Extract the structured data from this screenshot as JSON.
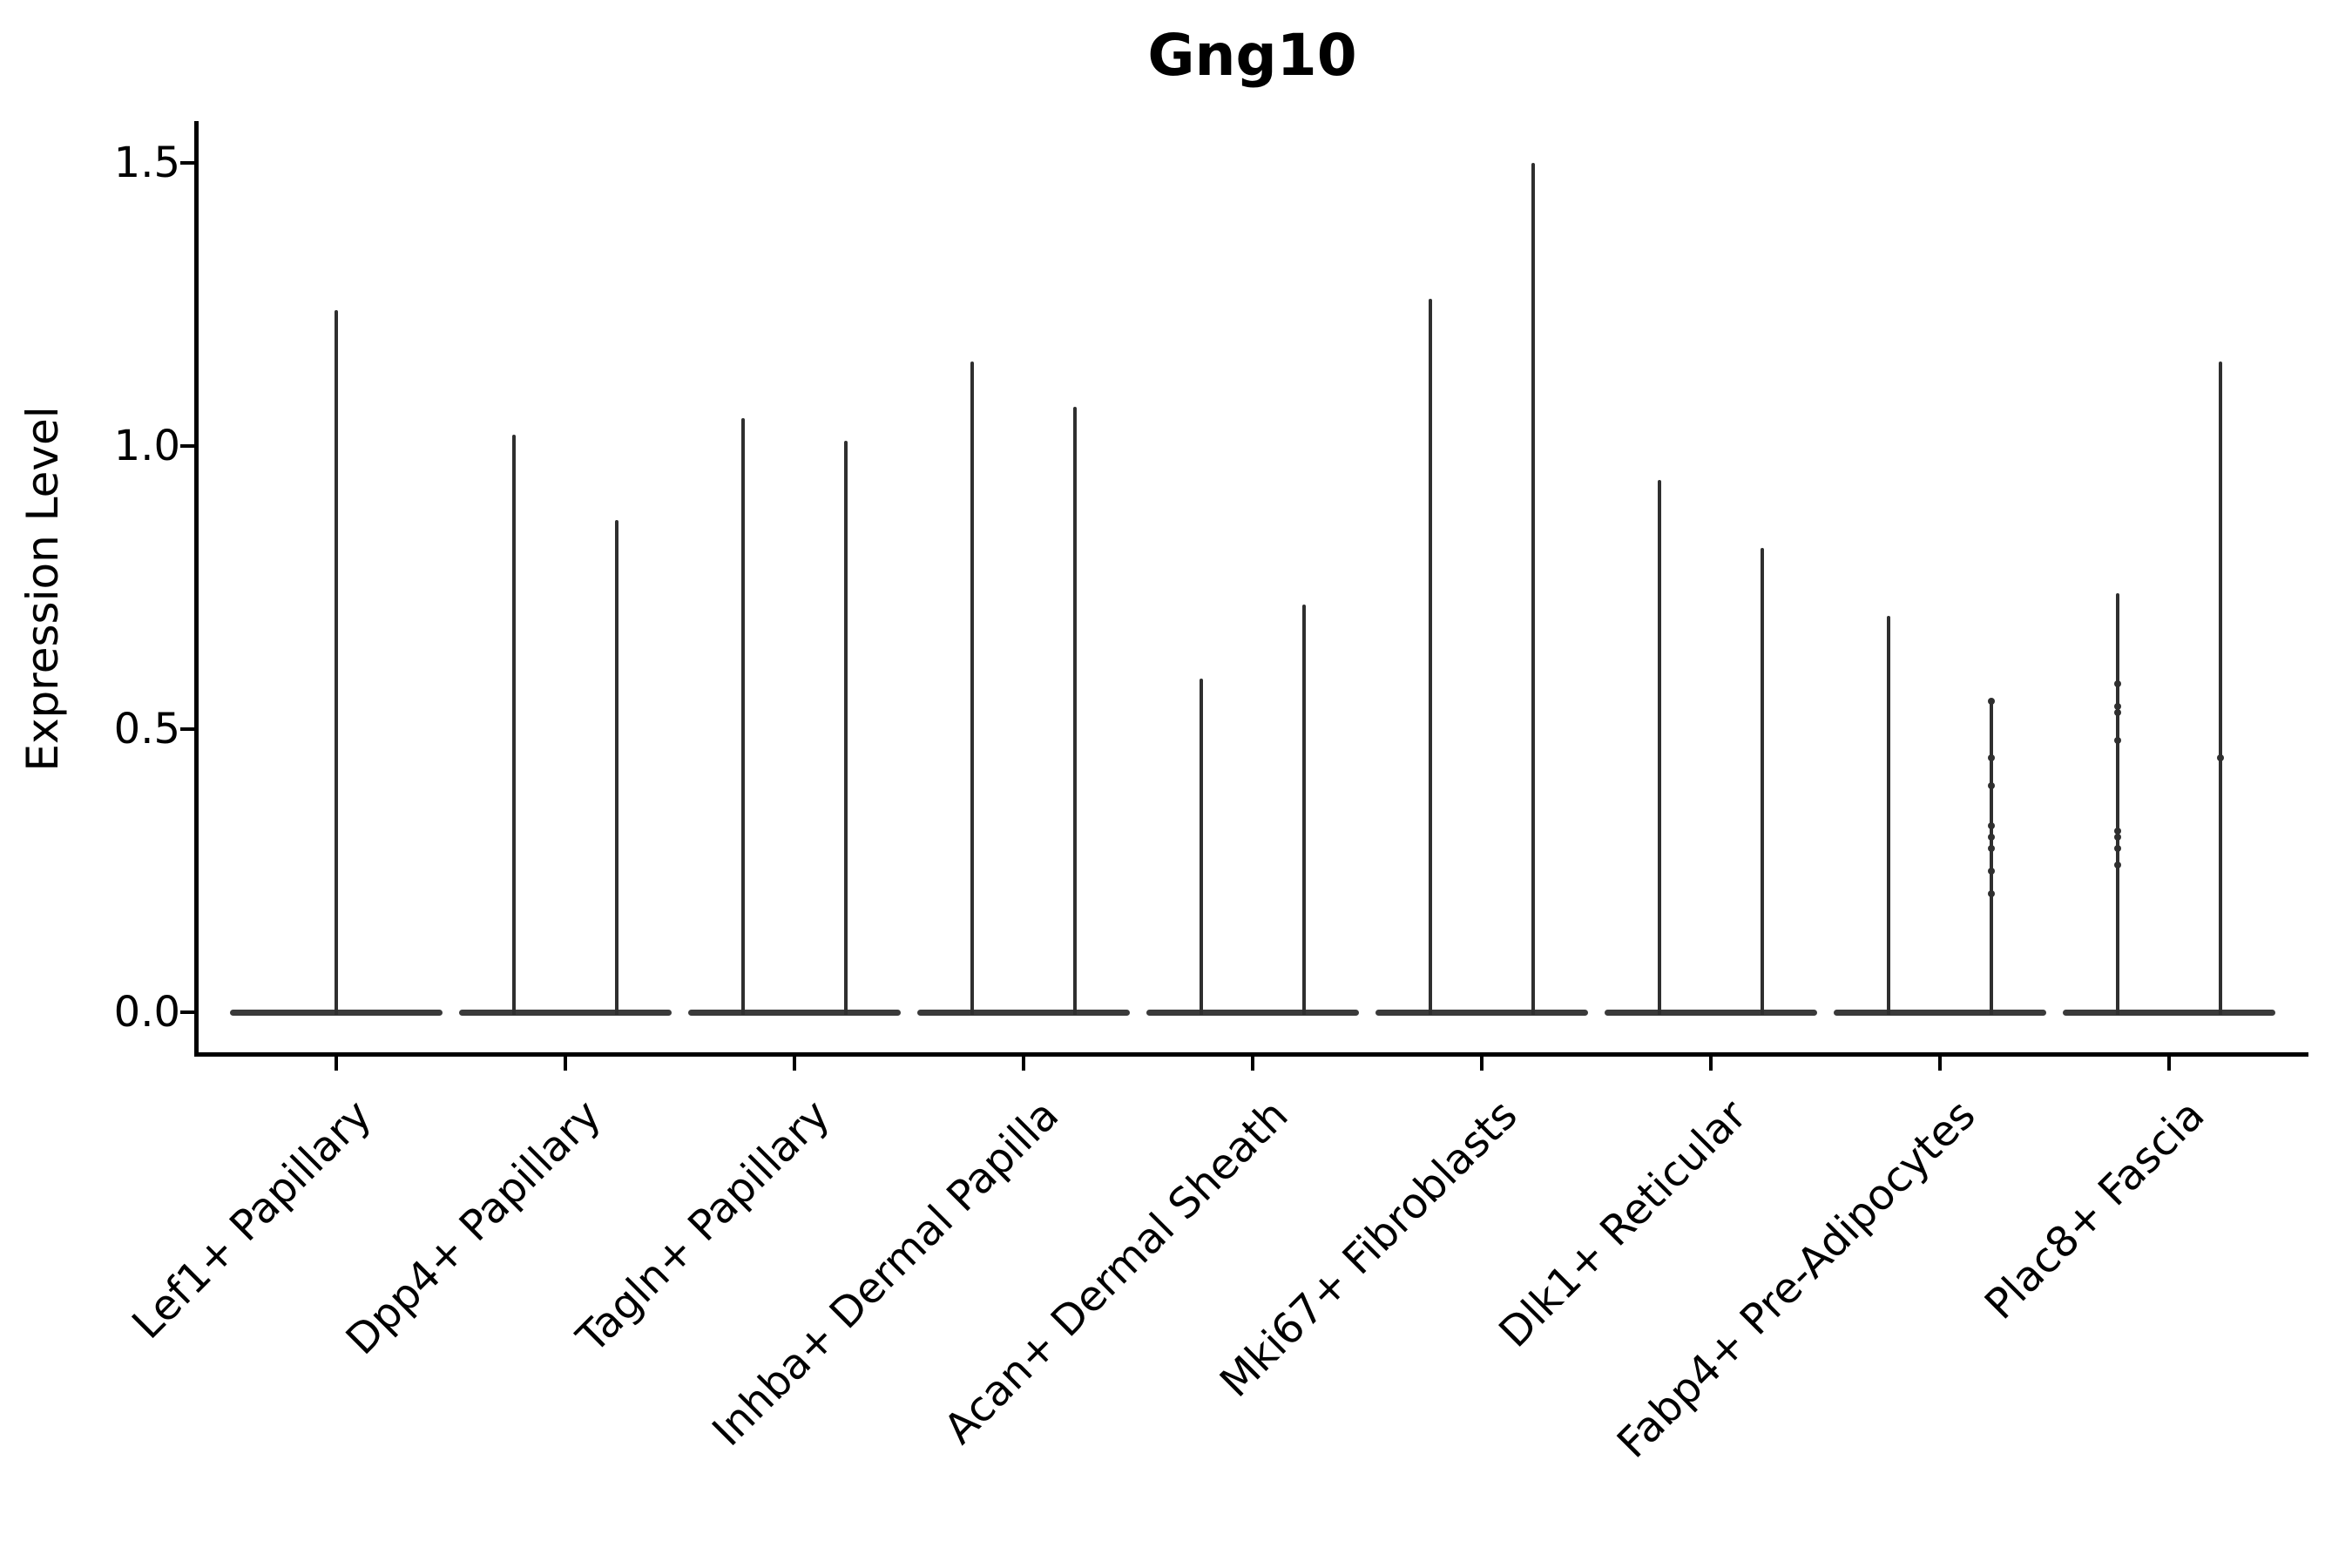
{
  "title": "Gng10",
  "chart_data": {
    "type": "violin",
    "title": "Gng10",
    "xlabel": "",
    "ylabel": "Expression Level",
    "ylim": [
      -0.07,
      1.57
    ],
    "yticks": [
      {
        "value": 0.0,
        "label": "0.0"
      },
      {
        "value": 0.5,
        "label": "0.5"
      },
      {
        "value": 1.0,
        "label": "1.0"
      },
      {
        "value": 1.5,
        "label": "1.5"
      }
    ],
    "grid": false,
    "legend": "none",
    "categories": [
      "Lef1+ Papillary",
      "Dpp4+ Papillary",
      "Tagln+ Papillary",
      "Inhba+ Dermal Papilla",
      "Acan+ Dermal Sheath",
      "Mki67+ Fibroblasts",
      "Dlk1+ Reticular",
      "Fabp4+ Pre-Adipocytes",
      "Plac8+ Fascia"
    ],
    "description": "Violin plot; each violin is flat at expression 0 with a thin vertical tail up to the max expression value. Most categories contain two side-by-side violins; the first category has a single centered violin.",
    "violins": [
      {
        "category": "Lef1+ Papillary",
        "spikes": [
          {
            "pos": "center",
            "max": 1.24
          }
        ]
      },
      {
        "category": "Dpp4+ Papillary",
        "spikes": [
          {
            "pos": "left",
            "max": 1.02
          },
          {
            "pos": "right",
            "max": 0.87
          }
        ]
      },
      {
        "category": "Tagln+ Papillary",
        "spikes": [
          {
            "pos": "left",
            "max": 1.05
          },
          {
            "pos": "right",
            "max": 1.01
          }
        ]
      },
      {
        "category": "Inhba+ Dermal Papilla",
        "spikes": [
          {
            "pos": "left",
            "max": 1.15
          },
          {
            "pos": "right",
            "max": 1.07
          }
        ]
      },
      {
        "category": "Acan+ Dermal Sheath",
        "spikes": [
          {
            "pos": "left",
            "max": 0.59
          },
          {
            "pos": "right",
            "max": 0.72
          }
        ]
      },
      {
        "category": "Mki67+ Fibroblasts",
        "spikes": [
          {
            "pos": "left",
            "max": 1.26
          },
          {
            "pos": "right",
            "max": 1.5
          }
        ]
      },
      {
        "category": "Dlk1+ Reticular",
        "spikes": [
          {
            "pos": "left",
            "max": 0.94
          },
          {
            "pos": "right",
            "max": 0.82
          }
        ]
      },
      {
        "category": "Fabp4+ Pre-Adipocytes",
        "spikes": [
          {
            "pos": "left",
            "max": 0.7
          },
          {
            "pos": "right",
            "max": 0.55,
            "points": [
              0.55,
              0.45,
              0.4,
              0.33,
              0.31,
              0.29,
              0.25,
              0.21
            ]
          }
        ]
      },
      {
        "category": "Plac8+ Fascia",
        "spikes": [
          {
            "pos": "left",
            "max": 0.74,
            "points": [
              0.58,
              0.54,
              0.53,
              0.48,
              0.32,
              0.31,
              0.29,
              0.26
            ]
          },
          {
            "pos": "right",
            "max": 1.15,
            "points": [
              0.45
            ]
          }
        ]
      }
    ],
    "colors": {
      "violin": "#2f2f2f",
      "violin_body": "#3a3a3a",
      "axis": "#000000",
      "text": "#000000",
      "background": "#ffffff"
    }
  }
}
